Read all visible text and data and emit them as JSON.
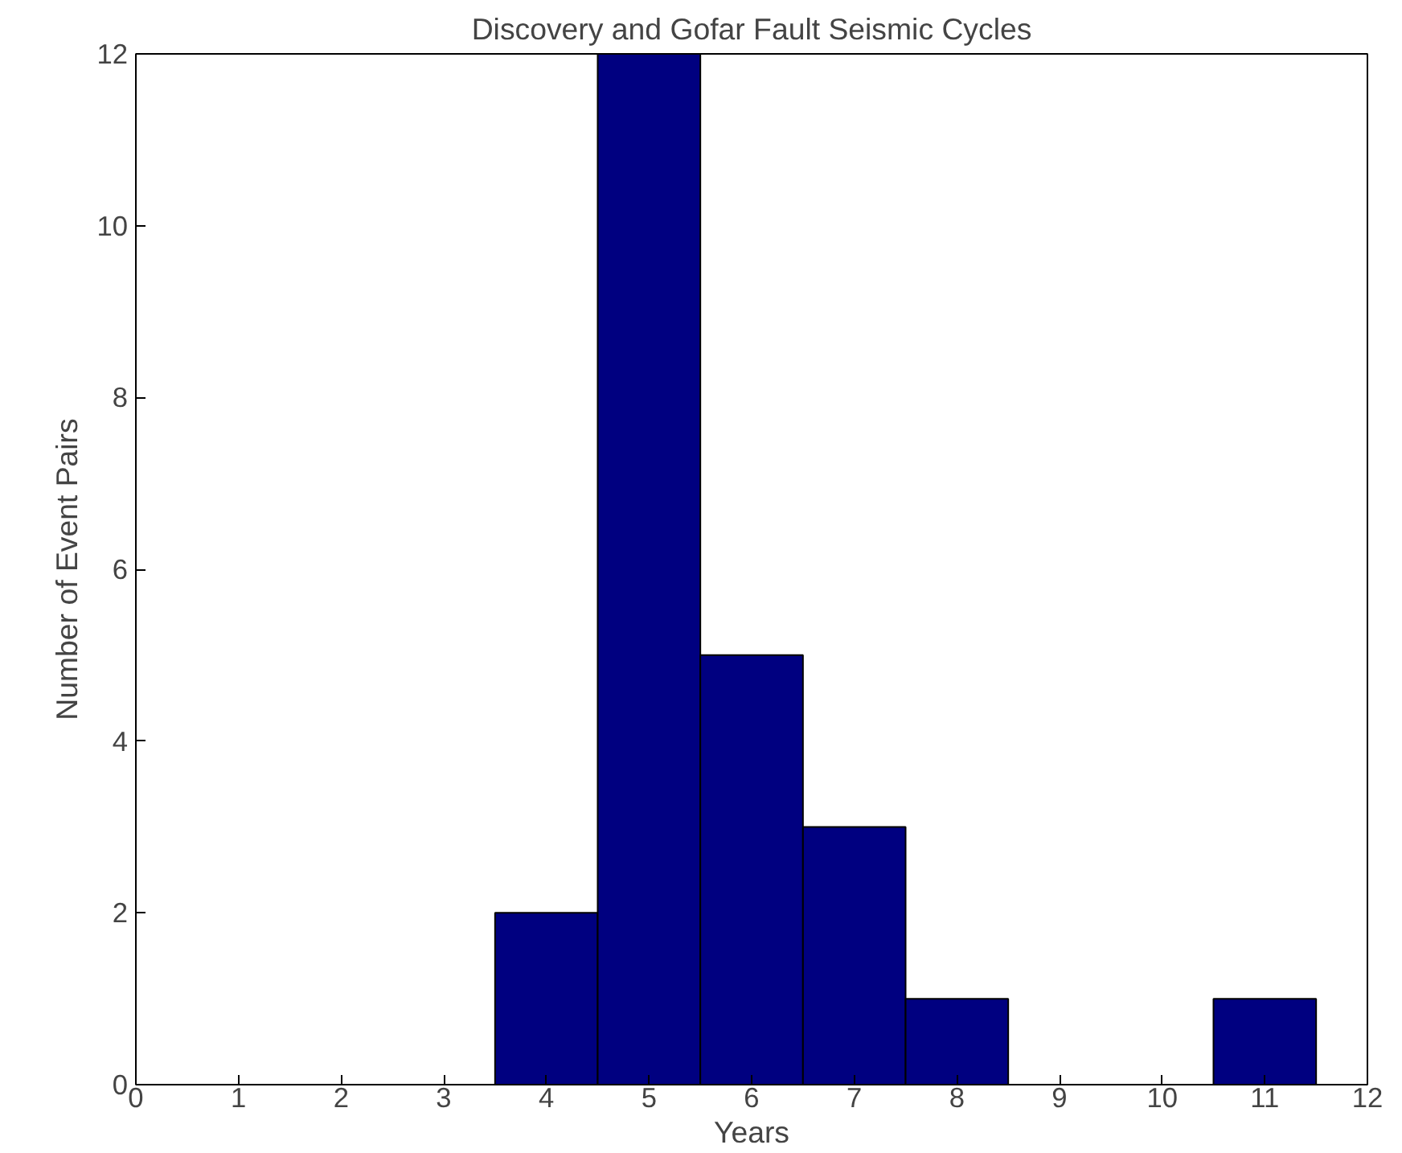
{
  "chart_data": {
    "type": "histogram",
    "title": "Discovery and Gofar Fault Seismic Cycles",
    "xlabel": "Years",
    "ylabel": "Number of Event Pairs",
    "bins": [
      3.5,
      4.5,
      5.5,
      6.5,
      7.5,
      8.5,
      9.5,
      10.5,
      11.5
    ],
    "values": [
      2,
      12,
      5,
      3,
      1,
      0,
      0,
      1
    ],
    "color": "#000080",
    "xlim": [
      0,
      12
    ],
    "ylim": [
      0,
      12
    ],
    "xticks": [
      0,
      1,
      2,
      3,
      4,
      5,
      6,
      7,
      8,
      9,
      10,
      11,
      12
    ],
    "yticks": [
      0,
      2,
      4,
      6,
      8,
      10,
      12
    ]
  }
}
